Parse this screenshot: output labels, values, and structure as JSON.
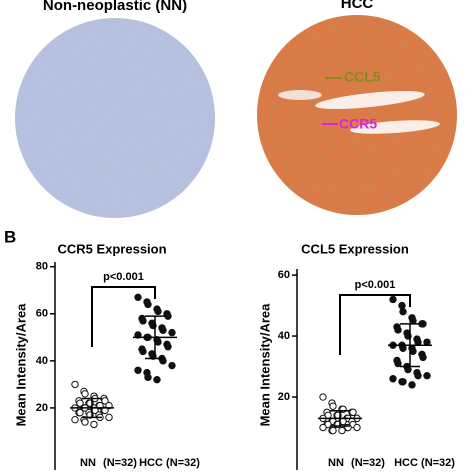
{
  "panel_a": {
    "left_title": "Non-neoplastic (NN)",
    "right_title": "HCC",
    "arrow_labels": [
      "CCL5",
      "CCR5"
    ]
  },
  "panel_b_label": "B",
  "chart_data": [
    {
      "type": "dot",
      "title": "CCR5 Expression",
      "y_label": "Mean Intensity/Area",
      "categories": [
        "NN",
        "HCC"
      ],
      "n_labels": [
        "(N=32)",
        "(N=32)"
      ],
      "markers": [
        "open",
        "filled"
      ],
      "values": [
        [
          30,
          27,
          26,
          25,
          24,
          24,
          23,
          23,
          22,
          22,
          22,
          21,
          21,
          21,
          20,
          20,
          20,
          20,
          19,
          19,
          19,
          18,
          18,
          18,
          17,
          17,
          16,
          16,
          15,
          15,
          14,
          13
        ],
        [
          67,
          65,
          64,
          62,
          61,
          60,
          59,
          58,
          57,
          56,
          55,
          54,
          53,
          52,
          51,
          50,
          50,
          49,
          48,
          47,
          46,
          45,
          44,
          43,
          42,
          41,
          40,
          38,
          36,
          35,
          33,
          32
        ]
      ],
      "means": [
        20,
        50
      ],
      "sds": [
        4,
        9
      ],
      "annotation": "p<0.001",
      "ylim": [
        0,
        82
      ],
      "yticks": [
        20,
        40,
        60,
        80
      ]
    },
    {
      "type": "dot",
      "title": "CCL5 Expression",
      "y_label": "Mean Intensity/Area",
      "categories": [
        "NN",
        "HCC"
      ],
      "n_labels": [
        "(N=32)",
        "(N=32)"
      ],
      "markers": [
        "open",
        "filled"
      ],
      "values": [
        [
          20,
          18,
          17,
          16,
          16,
          15,
          15,
          15,
          14,
          14,
          14,
          13,
          13,
          13,
          13,
          12,
          12,
          12,
          12,
          12,
          11,
          11,
          11,
          11,
          11,
          10,
          10,
          10,
          10,
          9,
          9,
          9
        ],
        [
          52,
          50,
          48,
          46,
          45,
          44,
          44,
          43,
          42,
          41,
          40,
          39,
          38,
          38,
          37,
          37,
          36,
          36,
          35,
          34,
          33,
          32,
          31,
          30,
          29,
          28,
          27,
          27,
          26,
          25,
          25,
          24
        ]
      ],
      "means": [
        13,
        37
      ],
      "sds": [
        2.5,
        7
      ],
      "annotation": "p<0.001",
      "ylim": [
        0,
        62
      ],
      "yticks": [
        20,
        40,
        60
      ]
    }
  ]
}
